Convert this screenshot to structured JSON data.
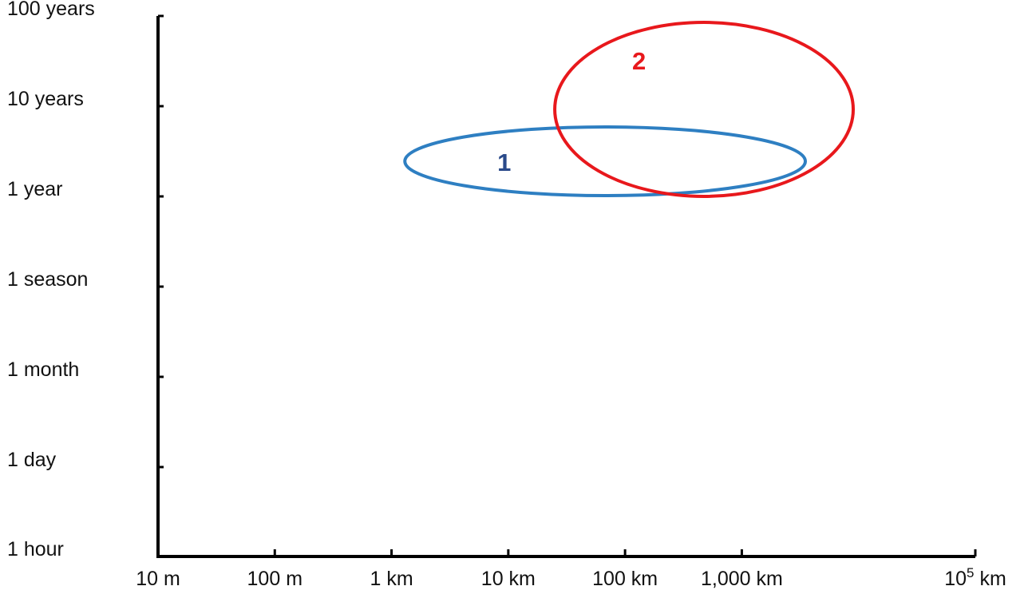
{
  "chart_data": {
    "type": "scatter",
    "title": "",
    "xlabel": "",
    "ylabel": "",
    "x_scale": "log",
    "x_ticks": [
      {
        "label": "10 m",
        "value_m": 10
      },
      {
        "label": "100 m",
        "value_m": 100
      },
      {
        "label": "1 km",
        "value_m": 1000
      },
      {
        "label": "10 km",
        "value_m": 10000
      },
      {
        "label": "100 km",
        "value_m": 100000
      },
      {
        "label": "1,000 km",
        "value_m": 1000000
      },
      {
        "label": "10",
        "sup": "5",
        "unit": " km",
        "value_m": 100000000
      }
    ],
    "y_ticks": [
      {
        "label": "1 hour"
      },
      {
        "label": "1 day"
      },
      {
        "label": "1 month"
      },
      {
        "label": "1 season"
      },
      {
        "label": "1 year"
      },
      {
        "label": "10 years"
      },
      {
        "label": "100 years"
      }
    ],
    "grid": false,
    "regions": [
      {
        "label": "1",
        "color": "#2e7fc2",
        "label_color": "#2a4a8a",
        "x_range_m": [
          1300,
          3500000
        ],
        "y_range": [
          "1 year",
          "10 years"
        ]
      },
      {
        "label": "2",
        "color": "#e8181c",
        "label_color": "#e8181c",
        "x_range_m": [
          25000,
          9000000
        ],
        "y_range": [
          "1 year",
          "100 years"
        ]
      }
    ]
  },
  "colors": {
    "axis": "#000000",
    "text": "#111111"
  }
}
